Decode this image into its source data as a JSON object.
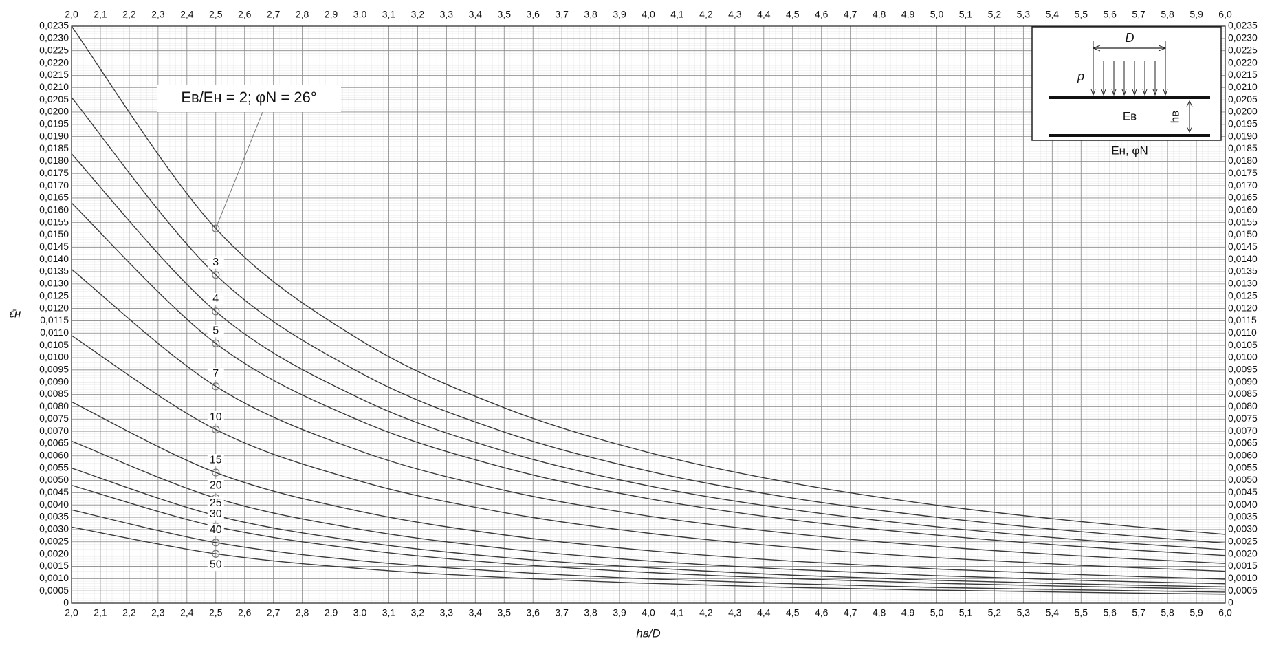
{
  "chart_data": {
    "type": "line",
    "x_label": "hв/D",
    "y_label": "ε̄н",
    "x": [
      2.0,
      2.5,
      3.0,
      3.5,
      4.0,
      4.5,
      5.0,
      5.5,
      6.0
    ],
    "series": [
      {
        "name": "Eв/Eн = 2; φN = 26°",
        "values": [
          0.0235,
          0.01526,
          0.01072,
          0.00796,
          0.00614,
          0.00489,
          0.00399,
          0.00332,
          0.0028
        ]
      },
      {
        "name": "3",
        "values": [
          0.0206,
          0.01337,
          0.00939,
          0.00697,
          0.00538,
          0.00428,
          0.0035,
          0.00291,
          0.00245
        ]
      },
      {
        "name": "4",
        "values": [
          0.0183,
          0.01188,
          0.00834,
          0.00619,
          0.00478,
          0.00381,
          0.00311,
          0.00258,
          0.00218
        ]
      },
      {
        "name": "5",
        "values": [
          0.0163,
          0.01058,
          0.00743,
          0.00552,
          0.00426,
          0.00339,
          0.00277,
          0.0023,
          0.00194
        ]
      },
      {
        "name": "7",
        "values": [
          0.0136,
          0.00883,
          0.0062,
          0.0046,
          0.00355,
          0.00283,
          0.00231,
          0.00192,
          0.00162
        ]
      },
      {
        "name": "10",
        "values": [
          0.0109,
          0.00707,
          0.00497,
          0.00369,
          0.00285,
          0.00227,
          0.00185,
          0.00154,
          0.0013
        ]
      },
      {
        "name": "15",
        "values": [
          0.0082,
          0.00532,
          0.00374,
          0.00278,
          0.00214,
          0.00171,
          0.00139,
          0.00116,
          0.00098
        ]
      },
      {
        "name": "20",
        "values": [
          0.0066,
          0.00428,
          0.00301,
          0.00223,
          0.00172,
          0.00137,
          0.00112,
          0.00093,
          0.00079
        ]
      },
      {
        "name": "25",
        "values": [
          0.0055,
          0.00357,
          0.00251,
          0.00186,
          0.00144,
          0.00114,
          0.00093,
          0.00078,
          0.00066
        ]
      },
      {
        "name": "30",
        "values": [
          0.0048,
          0.00312,
          0.00219,
          0.00162,
          0.00125,
          0.001,
          0.00081,
          0.00068,
          0.00057
        ]
      },
      {
        "name": "40",
        "values": [
          0.0038,
          0.00247,
          0.00173,
          0.00129,
          0.00099,
          0.00079,
          0.00064,
          0.00054,
          0.00045
        ]
      },
      {
        "name": "50",
        "values": [
          0.0031,
          0.00201,
          0.00141,
          0.00105,
          0.00081,
          0.00064,
          0.00053,
          0.00044,
          0.00037
        ]
      }
    ],
    "color": "#3a3a3a",
    "xlim": [
      2.0,
      6.0
    ],
    "ylim": [
      0,
      0.0235
    ],
    "grid": true,
    "xticks": [
      {
        "value": 2.0,
        "label": "2,0"
      },
      {
        "value": 2.1,
        "label": "2,1"
      },
      {
        "value": 2.2,
        "label": "2,2"
      },
      {
        "value": 2.3,
        "label": "2,3"
      },
      {
        "value": 2.4,
        "label": "2,4"
      },
      {
        "value": 2.5,
        "label": "2,5"
      },
      {
        "value": 2.6,
        "label": "2,6"
      },
      {
        "value": 2.7,
        "label": "2,7"
      },
      {
        "value": 2.8,
        "label": "2,8"
      },
      {
        "value": 2.9,
        "label": "2,9"
      },
      {
        "value": 3.0,
        "label": "3,0"
      },
      {
        "value": 3.1,
        "label": "3,1"
      },
      {
        "value": 3.2,
        "label": "3,2"
      },
      {
        "value": 3.3,
        "label": "3,3"
      },
      {
        "value": 3.4,
        "label": "3,4"
      },
      {
        "value": 3.5,
        "label": "3,5"
      },
      {
        "value": 3.6,
        "label": "3,6"
      },
      {
        "value": 3.7,
        "label": "3,7"
      },
      {
        "value": 3.8,
        "label": "3,8"
      },
      {
        "value": 3.9,
        "label": "3,9"
      },
      {
        "value": 4.0,
        "label": "4,0"
      },
      {
        "value": 4.1,
        "label": "4,1"
      },
      {
        "value": 4.2,
        "label": "4,2"
      },
      {
        "value": 4.3,
        "label": "4,3"
      },
      {
        "value": 4.4,
        "label": "4,4"
      },
      {
        "value": 4.5,
        "label": "4,5"
      },
      {
        "value": 4.6,
        "label": "4,6"
      },
      {
        "value": 4.7,
        "label": "4,7"
      },
      {
        "value": 4.8,
        "label": "4,8"
      },
      {
        "value": 4.9,
        "label": "4,9"
      },
      {
        "value": 5.0,
        "label": "5,0"
      },
      {
        "value": 5.1,
        "label": "5,1"
      },
      {
        "value": 5.2,
        "label": "5,2"
      },
      {
        "value": 5.3,
        "label": "5,3"
      },
      {
        "value": 5.4,
        "label": "5,4"
      },
      {
        "value": 5.5,
        "label": "5,5"
      },
      {
        "value": 5.6,
        "label": "5,6"
      },
      {
        "value": 5.7,
        "label": "5,7"
      },
      {
        "value": 5.8,
        "label": "5,8"
      },
      {
        "value": 5.9,
        "label": "5,9"
      },
      {
        "value": 6.0,
        "label": "6,0"
      }
    ],
    "yticks": [
      0,
      {
        "value": 0.0005,
        "label": "0,0005"
      },
      {
        "value": 0.001,
        "label": "0,0010"
      },
      {
        "value": 0.0015,
        "label": "0,0015"
      },
      {
        "value": 0.002,
        "label": "0,0020"
      },
      {
        "value": 0.0025,
        "label": "0,0025"
      },
      {
        "value": 0.003,
        "label": "0,0030"
      },
      {
        "value": 0.0035,
        "label": "0,0035"
      },
      {
        "value": 0.004,
        "label": "0,0040"
      },
      {
        "value": 0.0045,
        "label": "0,0045"
      },
      {
        "value": 0.005,
        "label": "0,0050"
      },
      {
        "value": 0.0055,
        "label": "0,0055"
      },
      {
        "value": 0.006,
        "label": "0,0060"
      },
      {
        "value": 0.0065,
        "label": "0,0065"
      },
      {
        "value": 0.007,
        "label": "0,0070"
      },
      {
        "value": 0.0075,
        "label": "0,0075"
      },
      {
        "value": 0.008,
        "label": "0,0080"
      },
      {
        "value": 0.0085,
        "label": "0,0085"
      },
      {
        "value": 0.009,
        "label": "0,0090"
      },
      {
        "value": 0.0095,
        "label": "0,0095"
      },
      {
        "value": 0.01,
        "label": "0,0100"
      },
      {
        "value": 0.0105,
        "label": "0,0105"
      },
      {
        "value": 0.011,
        "label": "0,0110"
      },
      {
        "value": 0.0115,
        "label": "0,0115"
      },
      {
        "value": 0.012,
        "label": "0,0120"
      },
      {
        "value": 0.0125,
        "label": "0,0125"
      },
      {
        "value": 0.013,
        "label": "0,0130"
      },
      {
        "value": 0.0135,
        "label": "0,0135"
      },
      {
        "value": 0.014,
        "label": "0,0140"
      },
      {
        "value": 0.0145,
        "label": "0,0145"
      },
      {
        "value": 0.015,
        "label": "0,0150"
      },
      {
        "value": 0.0155,
        "label": "0,0155"
      },
      {
        "value": 0.016,
        "label": "0,0160"
      },
      {
        "value": 0.0165,
        "label": "0,0165"
      },
      {
        "value": 0.017,
        "label": "0,0170"
      },
      {
        "value": 0.0175,
        "label": "0,0175"
      },
      {
        "value": 0.018,
        "label": "0,0180"
      },
      {
        "value": 0.0185,
        "label": "0,0185"
      },
      {
        "value": 0.019,
        "label": "0,0190"
      },
      {
        "value": 0.0195,
        "label": "0,0195"
      },
      {
        "value": 0.02,
        "label": "0,0200"
      },
      {
        "value": 0.0205,
        "label": "0,0205"
      },
      {
        "value": 0.021,
        "label": "0,0210"
      },
      {
        "value": 0.0215,
        "label": "0,0215"
      },
      {
        "value": 0.022,
        "label": "0,0220"
      },
      {
        "value": 0.0225,
        "label": "0,0225"
      },
      {
        "value": 0.023,
        "label": "0,0230"
      },
      {
        "value": 0.0235,
        "label": "0,0235"
      }
    ],
    "inset": {
      "width_label": "D",
      "load_label": "p",
      "upper_layer": "Eв",
      "thickness": "hв",
      "lower_layer": "Eн, φN"
    }
  }
}
